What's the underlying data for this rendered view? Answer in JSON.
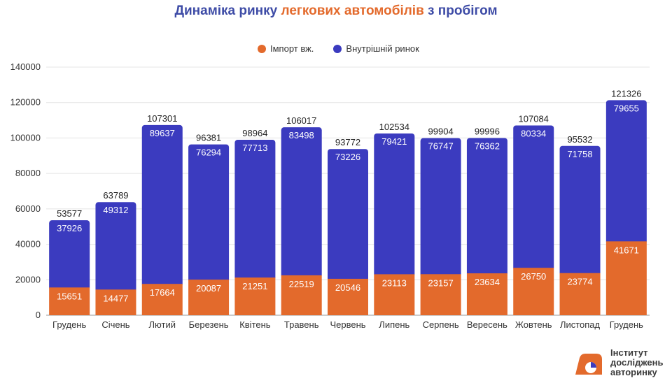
{
  "title": {
    "part1": "Динаміка ринку ",
    "part2": "легкових автомобілів",
    "part3": " з пробігом"
  },
  "colors": {
    "import": "#e36a2c",
    "domestic": "#3b3bbf",
    "title": "#3d4ba6"
  },
  "logo": {
    "line1": "Інститут",
    "line2": "досліджень",
    "line3": "авторинку"
  },
  "chart_data": {
    "type": "bar",
    "stacked": true,
    "categories": [
      "Грудень",
      "Січень",
      "Лютий",
      "Березень",
      "Квітень",
      "Травень",
      "Червень",
      "Липень",
      "Серпень",
      "Вересень",
      "Жовтень",
      "Листопад",
      "Грудень"
    ],
    "series": [
      {
        "name": "Імпорт вж.",
        "values": [
          15651,
          14477,
          17664,
          20087,
          21251,
          22519,
          20546,
          23113,
          23157,
          23634,
          26750,
          23774,
          41671
        ]
      },
      {
        "name": "Внутрішній ринок",
        "values": [
          37926,
          49312,
          89637,
          76294,
          77713,
          83498,
          73226,
          79421,
          76747,
          76362,
          80334,
          71758,
          79655
        ]
      }
    ],
    "totals": [
      53577,
      63789,
      107301,
      96381,
      98964,
      106017,
      93772,
      102534,
      99904,
      99996,
      107084,
      95532,
      121326
    ],
    "yticks": [
      0,
      20000,
      40000,
      60000,
      80000,
      100000,
      120000,
      140000
    ],
    "ylim": [
      0,
      140000
    ],
    "legend_position": "top-center",
    "grid": true
  }
}
